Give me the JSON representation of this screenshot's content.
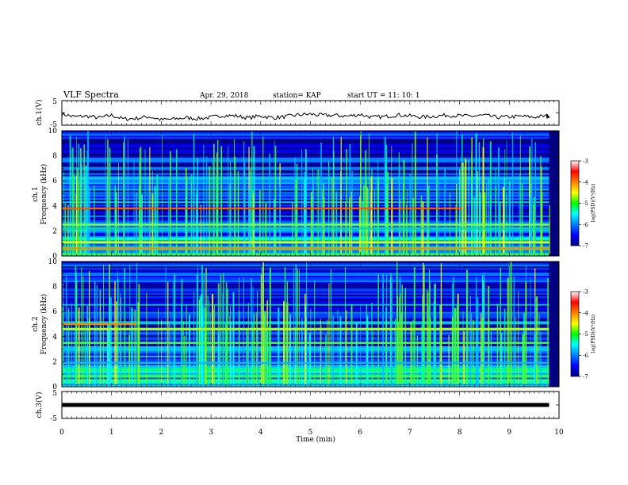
{
  "header": {
    "title": "VLF Spectra",
    "date": "Apr. 29, 2018",
    "station": "station= KAP",
    "start": "start  UT =   11: 10: 1"
  },
  "chart_data": [
    {
      "type": "line",
      "panel": "ch.1",
      "ylabel": "ch.1(V)",
      "ylim": [
        -5,
        5
      ],
      "yticks": [
        "5",
        "-5"
      ],
      "x": [
        0,
        0.25,
        0.5,
        0.75,
        1,
        1.25,
        1.5,
        1.75,
        2,
        2.25,
        2.5,
        2.75,
        3,
        3.25,
        3.5,
        3.75,
        4,
        4.25,
        4.5,
        4.75,
        5,
        5.25,
        5.5,
        5.75,
        6,
        6.25,
        6.5,
        6.75,
        7,
        7.25,
        7.5,
        7.75,
        8,
        8.25,
        8.5,
        8.75,
        9,
        9.25,
        9.5,
        9.75,
        9.8
      ],
      "values": [
        -0.5,
        -1.5,
        -1.3,
        -2.0,
        -1.0,
        -2.5,
        -2.2,
        -1.5,
        -2.8,
        -2.5,
        -2.0,
        -2.3,
        -1.8,
        -1.0,
        -1.2,
        -2.0,
        -1.2,
        -2.0,
        -1.5,
        -0.8,
        -0.5,
        -1.0,
        -1.0,
        -1.3,
        -0.6,
        -1.8,
        -1.5,
        -0.8,
        -1.2,
        -1.7,
        -1.3,
        -0.9,
        -1.2,
        -1.3,
        -1.0,
        -1.8,
        -1.6,
        -1.4,
        -1.7,
        -1.2,
        -1.3
      ],
      "line_color": "#000000"
    },
    {
      "type": "heatmap",
      "panel": "ch.1",
      "ylabel_lines": [
        "ch.1",
        "Frequency (kHz)"
      ],
      "ylim": [
        0,
        10
      ],
      "yticks": [
        "0",
        "2",
        "4",
        "6",
        "8",
        "10"
      ],
      "xlim": [
        0,
        10
      ],
      "data_end_min": 9.8,
      "persistent_lines_khz": [
        {
          "freq": 3.8,
          "end_min": 8.05,
          "color": "#ff5a00"
        },
        {
          "freq": 2.5,
          "end_min": 9.8,
          "color": "#80ff40"
        },
        {
          "freq": 2.2,
          "end_min": 9.8,
          "color": "#00e0a0"
        },
        {
          "freq": 0.6,
          "end_min": 9.8,
          "color": "#ff8800"
        },
        {
          "freq": 1.1,
          "end_min": 9.8,
          "color": "#f0ff00"
        }
      ],
      "colorbar": {
        "label": "log(PSD)(V²/Hz)",
        "min": -7,
        "max": -3,
        "ticks": [
          "-3",
          "-4",
          "-5",
          "-6",
          "-7"
        ],
        "colors": [
          "#ffffff",
          "#ff0000",
          "#ff8000",
          "#ffff00",
          "#00ff00",
          "#00ffff",
          "#0080ff",
          "#0000ff",
          "#000080"
        ]
      }
    },
    {
      "type": "heatmap",
      "panel": "ch.2",
      "ylabel_lines": [
        "ch.2",
        "Frequency (kHz)"
      ],
      "ylim": [
        0,
        10
      ],
      "yticks": [
        "0",
        "2",
        "4",
        "6",
        "8",
        "10"
      ],
      "xlim": [
        0,
        10
      ],
      "data_end_min": 9.8,
      "persistent_lines_khz": [
        {
          "freq": 3.5,
          "end_min": 9.8,
          "color": "#40ff40"
        },
        {
          "freq": 4.6,
          "end_min": 9.8,
          "color": "#c0ff00"
        },
        {
          "freq": 5.0,
          "end_min": 1.5,
          "color": "#ff8000"
        },
        {
          "freq": 1.9,
          "end_min": 9.8,
          "color": "#00c0ff"
        }
      ],
      "colorbar": {
        "label": "log(PSD)(V²/Hz)",
        "min": -7,
        "max": -3,
        "ticks": [
          "-3",
          "-4",
          "-5",
          "-6",
          "-7"
        ],
        "colors": [
          "#ffffff",
          "#ff0000",
          "#ff8000",
          "#ffff00",
          "#00ff00",
          "#00ffff",
          "#0080ff",
          "#0000ff",
          "#000080"
        ]
      }
    },
    {
      "type": "line",
      "panel": "ch.3",
      "ylabel": "ch.3(V)",
      "ylim": [
        -5,
        5
      ],
      "yticks": [
        "5",
        "-5"
      ],
      "x": [
        0,
        9.8
      ],
      "values": [
        0,
        0
      ],
      "line_color": "#000000"
    }
  ],
  "x_axis": {
    "label": "Time (min)",
    "ticks": [
      "0",
      "1",
      "2",
      "3",
      "4",
      "5",
      "6",
      "7",
      "8",
      "9",
      "10"
    ],
    "lim": [
      0,
      10
    ]
  }
}
